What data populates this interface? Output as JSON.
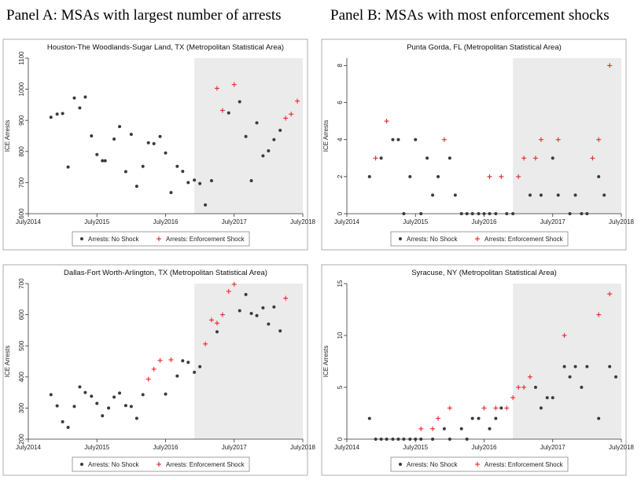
{
  "panels": {
    "a_title": "Panel A: MSAs with largest number of arrests",
    "b_title": "Panel B: MSAs with most enforcement shocks"
  },
  "chart_data": [
    {
      "type": "scatter",
      "title": "Houston-The Woodlands-Sugar Land, TX (Metropolitan Statistical Area)",
      "ylabel": "ICE Arrests",
      "xlim": [
        2014.5,
        2018.5
      ],
      "ylim": [
        600,
        1100
      ],
      "yticks": [
        600,
        700,
        800,
        900,
        1000,
        1100
      ],
      "xticks": [
        {
          "v": 2014.5,
          "label": "July2014"
        },
        {
          "v": 2015.5,
          "label": "July2015"
        },
        {
          "v": 2016.5,
          "label": "July2016"
        },
        {
          "v": 2017.5,
          "label": "July2017"
        },
        {
          "v": 2018.5,
          "label": "July2018"
        }
      ],
      "shade_from": 2016.92,
      "legend": [
        "Arrests: No Shock",
        "Arrests: Enforcement Shock"
      ],
      "series": [
        {
          "name": "Arrests: No Shock",
          "marker": "dot",
          "color": "#3a3a3a",
          "points": [
            [
              2014.83,
              910
            ],
            [
              2014.92,
              920
            ],
            [
              2015.0,
              922
            ],
            [
              2015.08,
              750
            ],
            [
              2015.17,
              972
            ],
            [
              2015.25,
              940
            ],
            [
              2015.33,
              975
            ],
            [
              2015.42,
              850
            ],
            [
              2015.5,
              790
            ],
            [
              2015.58,
              770
            ],
            [
              2015.62,
              770
            ],
            [
              2015.75,
              840
            ],
            [
              2015.83,
              880
            ],
            [
              2015.92,
              735
            ],
            [
              2016.0,
              855
            ],
            [
              2016.08,
              688
            ],
            [
              2016.17,
              752
            ],
            [
              2016.25,
              828
            ],
            [
              2016.33,
              825
            ],
            [
              2016.42,
              848
            ],
            [
              2016.5,
              795
            ],
            [
              2016.58,
              668
            ],
            [
              2016.67,
              752
            ],
            [
              2016.75,
              736
            ],
            [
              2016.83,
              700
            ],
            [
              2016.92,
              708
            ],
            [
              2017.0,
              697
            ],
            [
              2017.08,
              628
            ],
            [
              2017.17,
              706
            ],
            [
              2017.42,
              924
            ],
            [
              2017.58,
              960
            ],
            [
              2017.67,
              848
            ],
            [
              2017.75,
              706
            ],
            [
              2017.83,
              892
            ],
            [
              2017.92,
              786
            ],
            [
              2018.0,
              802
            ],
            [
              2018.08,
              838
            ],
            [
              2018.17,
              868
            ]
          ]
        },
        {
          "name": "Arrests: Enforcement Shock",
          "marker": "plus",
          "color": "#e8262a",
          "points": [
            [
              2017.25,
              1003
            ],
            [
              2017.33,
              932
            ],
            [
              2017.5,
              1015
            ],
            [
              2018.25,
              907
            ],
            [
              2018.33,
              920
            ],
            [
              2018.42,
              962
            ]
          ]
        }
      ]
    },
    {
      "type": "scatter",
      "title": "Punta Gorda, FL (Metropolitan Statistical Area)",
      "ylabel": "ICE Arrests",
      "xlim": [
        2014.5,
        2018.5
      ],
      "ylim": [
        0,
        8.4
      ],
      "yticks": [
        0,
        2,
        4,
        6,
        8
      ],
      "xticks": [
        {
          "v": 2014.5,
          "label": "July2014"
        },
        {
          "v": 2015.5,
          "label": "July2015"
        },
        {
          "v": 2016.5,
          "label": "July2016"
        },
        {
          "v": 2017.5,
          "label": "July2017"
        },
        {
          "v": 2018.5,
          "label": "July2018"
        }
      ],
      "shade_from": 2016.92,
      "legend": [
        "Arrests: No Shock",
        "Arrests: Enforcement Shock"
      ],
      "series": [
        {
          "name": "Arrests: No Shock",
          "marker": "dot",
          "color": "#3a3a3a",
          "points": [
            [
              2014.83,
              2
            ],
            [
              2015.0,
              3
            ],
            [
              2015.17,
              4
            ],
            [
              2015.25,
              4
            ],
            [
              2015.33,
              0
            ],
            [
              2015.42,
              2
            ],
            [
              2015.5,
              4
            ],
            [
              2015.58,
              0
            ],
            [
              2015.67,
              3
            ],
            [
              2015.75,
              1
            ],
            [
              2015.83,
              2
            ],
            [
              2016.0,
              3
            ],
            [
              2016.08,
              1
            ],
            [
              2016.17,
              0
            ],
            [
              2016.25,
              0
            ],
            [
              2016.33,
              0
            ],
            [
              2016.42,
              0
            ],
            [
              2016.5,
              0
            ],
            [
              2016.58,
              0
            ],
            [
              2016.67,
              0
            ],
            [
              2016.83,
              0
            ],
            [
              2016.92,
              0
            ],
            [
              2017.17,
              1
            ],
            [
              2017.33,
              1
            ],
            [
              2017.5,
              3
            ],
            [
              2017.58,
              1
            ],
            [
              2017.75,
              0
            ],
            [
              2017.83,
              1
            ],
            [
              2017.92,
              0
            ],
            [
              2018.0,
              0
            ],
            [
              2018.17,
              2
            ],
            [
              2018.25,
              1
            ]
          ]
        },
        {
          "name": "Arrests: Enforcement Shock",
          "marker": "plus",
          "color": "#e8262a",
          "points": [
            [
              2014.92,
              3
            ],
            [
              2015.08,
              5
            ],
            [
              2015.92,
              4
            ],
            [
              2016.58,
              2
            ],
            [
              2016.75,
              2
            ],
            [
              2017.0,
              2
            ],
            [
              2017.08,
              3
            ],
            [
              2017.25,
              3
            ],
            [
              2017.33,
              4
            ],
            [
              2017.58,
              4
            ],
            [
              2018.08,
              3
            ],
            [
              2018.17,
              4
            ],
            [
              2018.33,
              8
            ]
          ]
        }
      ]
    },
    {
      "type": "scatter",
      "title": "Dallas-Fort Worth-Arlington, TX (Metropolitan Statistical Area)",
      "ylabel": "ICE Arrests",
      "xlim": [
        2014.5,
        2018.5
      ],
      "ylim": [
        200,
        700
      ],
      "yticks": [
        200,
        300,
        400,
        500,
        600,
        700
      ],
      "xticks": [
        {
          "v": 2014.5,
          "label": "July2014"
        },
        {
          "v": 2015.5,
          "label": "July2015"
        },
        {
          "v": 2016.5,
          "label": "July2016"
        },
        {
          "v": 2017.5,
          "label": "July2017"
        },
        {
          "v": 2018.5,
          "label": "July2018"
        }
      ],
      "shade_from": 2016.92,
      "legend": [
        "Arrests: No Shock",
        "Arrests: Enforcement Shock"
      ],
      "series": [
        {
          "name": "Arrests: No Shock",
          "marker": "dot",
          "color": "#3a3a3a",
          "points": [
            [
              2014.83,
              343
            ],
            [
              2014.92,
              307
            ],
            [
              2015.0,
              256
            ],
            [
              2015.08,
              238
            ],
            [
              2015.17,
              305
            ],
            [
              2015.25,
              368
            ],
            [
              2015.33,
              350
            ],
            [
              2015.42,
              338
            ],
            [
              2015.5,
              315
            ],
            [
              2015.58,
              275
            ],
            [
              2015.67,
              300
            ],
            [
              2015.75,
              335
            ],
            [
              2015.83,
              348
            ],
            [
              2015.92,
              308
            ],
            [
              2016.0,
              305
            ],
            [
              2016.08,
              267
            ],
            [
              2016.17,
              343
            ],
            [
              2016.5,
              345
            ],
            [
              2016.67,
              403
            ],
            [
              2016.75,
              452
            ],
            [
              2016.83,
              447
            ],
            [
              2016.92,
              415
            ],
            [
              2017.0,
              433
            ],
            [
              2017.25,
              545
            ],
            [
              2017.58,
              613
            ],
            [
              2017.67,
              665
            ],
            [
              2017.75,
              604
            ],
            [
              2017.83,
              597
            ],
            [
              2017.92,
              622
            ],
            [
              2018.0,
              570
            ],
            [
              2018.08,
              625
            ],
            [
              2018.17,
              548
            ]
          ]
        },
        {
          "name": "Arrests: Enforcement Shock",
          "marker": "plus",
          "color": "#e8262a",
          "points": [
            [
              2016.25,
              393
            ],
            [
              2016.33,
              425
            ],
            [
              2016.42,
              453
            ],
            [
              2016.58,
              455
            ],
            [
              2017.08,
              506
            ],
            [
              2017.17,
              583
            ],
            [
              2017.25,
              573
            ],
            [
              2017.33,
              600
            ],
            [
              2017.42,
              675
            ],
            [
              2017.5,
              698
            ],
            [
              2018.25,
              653
            ]
          ]
        }
      ]
    },
    {
      "type": "scatter",
      "title": "Syracuse, NY (Metropolitan Statistical Area)",
      "ylabel": "ICE Arrests",
      "xlim": [
        2014.5,
        2018.5
      ],
      "ylim": [
        0,
        15
      ],
      "yticks": [
        0,
        5,
        10,
        15
      ],
      "xticks": [
        {
          "v": 2014.5,
          "label": "July2014"
        },
        {
          "v": 2015.5,
          "label": "July2015"
        },
        {
          "v": 2016.5,
          "label": "July2016"
        },
        {
          "v": 2017.5,
          "label": "July2017"
        },
        {
          "v": 2018.5,
          "label": "July2018"
        }
      ],
      "shade_from": 2016.92,
      "legend": [
        "Arrests: No Shock",
        "Arrests: Enforcement Shock"
      ],
      "series": [
        {
          "name": "Arrests: No Shock",
          "marker": "dot",
          "color": "#3a3a3a",
          "points": [
            [
              2014.83,
              2
            ],
            [
              2014.92,
              0
            ],
            [
              2015.0,
              0
            ],
            [
              2015.08,
              0
            ],
            [
              2015.17,
              0
            ],
            [
              2015.25,
              0
            ],
            [
              2015.33,
              0
            ],
            [
              2015.42,
              0
            ],
            [
              2015.5,
              0
            ],
            [
              2015.58,
              0
            ],
            [
              2015.75,
              0
            ],
            [
              2015.92,
              1
            ],
            [
              2016.0,
              0
            ],
            [
              2016.17,
              1
            ],
            [
              2016.25,
              0
            ],
            [
              2016.33,
              2
            ],
            [
              2016.42,
              2
            ],
            [
              2016.58,
              1
            ],
            [
              2016.67,
              2
            ],
            [
              2016.75,
              3
            ],
            [
              2017.25,
              5
            ],
            [
              2017.33,
              3
            ],
            [
              2017.42,
              4
            ],
            [
              2017.5,
              4
            ],
            [
              2017.67,
              7
            ],
            [
              2017.75,
              6
            ],
            [
              2017.83,
              7
            ],
            [
              2017.92,
              5
            ],
            [
              2018.0,
              7
            ],
            [
              2018.17,
              2
            ],
            [
              2018.33,
              7
            ],
            [
              2018.42,
              6
            ]
          ]
        },
        {
          "name": "Arrests: Enforcement Shock",
          "marker": "plus",
          "color": "#e8262a",
          "points": [
            [
              2015.58,
              1
            ],
            [
              2015.75,
              1
            ],
            [
              2015.83,
              2
            ],
            [
              2016.0,
              3
            ],
            [
              2016.5,
              3
            ],
            [
              2016.67,
              3
            ],
            [
              2016.83,
              3
            ],
            [
              2016.92,
              4
            ],
            [
              2017.0,
              5
            ],
            [
              2017.08,
              5
            ],
            [
              2017.17,
              6
            ],
            [
              2017.67,
              10
            ],
            [
              2018.17,
              12
            ],
            [
              2018.33,
              14
            ]
          ]
        }
      ]
    }
  ]
}
